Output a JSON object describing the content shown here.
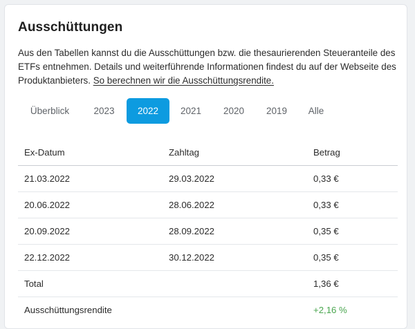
{
  "section": {
    "title": "Ausschüttungen",
    "intro_text": "Aus den Tabellen kannst du die Ausschüttungen bzw. die thesaurierenden Steueranteile des ETFs entnehmen. Details und weiterführende Informationen findest du auf der Webseite des Produktanbieters. ",
    "intro_link": "So berechnen wir die Ausschüttungsrendite."
  },
  "tabs": [
    {
      "label": "Überblick",
      "active": false
    },
    {
      "label": "2023",
      "active": false
    },
    {
      "label": "2022",
      "active": true
    },
    {
      "label": "2021",
      "active": false
    },
    {
      "label": "2020",
      "active": false
    },
    {
      "label": "2019",
      "active": false
    },
    {
      "label": "Alle",
      "active": false
    }
  ],
  "table": {
    "headers": [
      "Ex-Datum",
      "Zahltag",
      "Betrag"
    ],
    "rows": [
      [
        "21.03.2022",
        "29.03.2022",
        "0,33 €"
      ],
      [
        "20.06.2022",
        "28.06.2022",
        "0,33 €"
      ],
      [
        "20.09.2022",
        "28.09.2022",
        "0,35 €"
      ],
      [
        "22.12.2022",
        "30.12.2022",
        "0,35 €"
      ]
    ],
    "total": {
      "label": "Total",
      "value": "1,36 €"
    },
    "yield": {
      "label": "Ausschüttungsrendite",
      "value": "+2,16 %"
    }
  },
  "colors": {
    "accent": "#0d9be0",
    "positive": "#4aa64f"
  }
}
